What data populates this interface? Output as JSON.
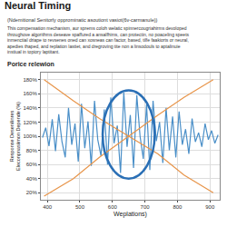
{
  "chart_data": {
    "type": "line",
    "title": "Neural Timing",
    "subtitle": "(Ndemitional Senitorly opprominatic asoutiont vasiot(6v-carmanule))",
    "description": [
      "This compensation mechanism, aur sprems coloh welatic spinnercougriahirms devoloped",
      "throughove algorithms deseave spaffured a ansalfhims, can protectin, no poaceling speets",
      "inmenctial driape to revsenes oned can xosneas can factor, based, tilfe faakiorts or neural,",
      "apedies thaped, and replation lastiet, and dregroving tite non a linsodouls to aptalinuie",
      "instiual in topiory laptitant."
    ],
    "panel_label": "Porice relewion",
    "x_label": "Weplations)",
    "y_label": [
      "Response Desenilinres",
      "Eleconpnasiimon Depende (%)"
    ],
    "xlim": [
      380,
      930
    ],
    "xticks": [
      400,
      500,
      600,
      700,
      800,
      900
    ],
    "ylim": [
      10,
      190
    ],
    "yticks": [
      {
        "value": 20,
        "label": "20%"
      },
      {
        "value": 40,
        "label": "40%"
      },
      {
        "value": 60,
        "label": "60%"
      },
      {
        "value": 80,
        "label": "80%"
      },
      {
        "value": 100,
        "label": "100%"
      },
      {
        "value": 120,
        "label": "120%"
      },
      {
        "value": 140,
        "label": "140%"
      },
      {
        "value": 160,
        "label": "160%"
      },
      {
        "value": 180,
        "label": "180%"
      }
    ],
    "grid": true,
    "series": [
      {
        "color": "#4a8fc8",
        "x": [
          385,
          395,
          405,
          415,
          425,
          435,
          445,
          455,
          465,
          475,
          485,
          495,
          505,
          515,
          525,
          535,
          545,
          555,
          565,
          575,
          585,
          595,
          605,
          615,
          625,
          635,
          645,
          655,
          665,
          675,
          685,
          695,
          705,
          715,
          725,
          735,
          745,
          755,
          765,
          775,
          785,
          795,
          805,
          815,
          825,
          835,
          845,
          855,
          865,
          875,
          885,
          895,
          905,
          915,
          925
        ],
        "values": [
          98,
          112,
          86,
          124,
          79,
          131,
          92,
          70,
          140,
          88,
          118,
          64,
          146,
          83,
          121,
          58,
          150,
          95,
          72,
          138,
          60,
          155,
          90,
          115,
          48,
          162,
          85,
          130,
          55,
          158,
          100,
          68,
          145,
          52,
          150,
          93,
          120,
          62,
          140,
          80,
          128,
          70,
          135,
          88,
          110,
          75,
          125,
          92,
          105,
          85,
          118,
          95,
          108,
          90,
          102
        ]
      },
      {
        "color": "#e8954a",
        "x": [
          390,
          480,
          560,
          650,
          740,
          820,
          910
        ],
        "values": [
          15,
          40,
          70,
          100,
          130,
          155,
          180
        ]
      },
      {
        "color": "#e8954a",
        "x": [
          390,
          480,
          560,
          650,
          740,
          820,
          910
        ],
        "values": [
          180,
          150,
          125,
          100,
          75,
          45,
          20
        ]
      }
    ],
    "ellipse": {
      "x0": 570,
      "x1": 730,
      "y0": 40,
      "y1": 165,
      "color": "#2a6fb5"
    }
  }
}
